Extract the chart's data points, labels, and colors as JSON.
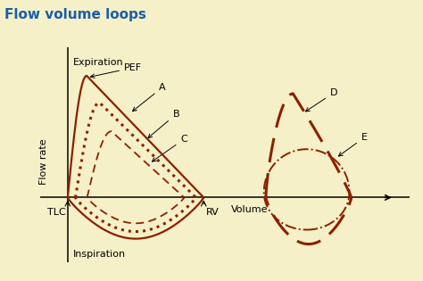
{
  "title": "Flow volume loops",
  "title_color": "#1a5fa8",
  "bg_color": "#f5f0c8",
  "curve_color": "#8B2000",
  "xlabel": "Volume",
  "ylabel": "Flow rate",
  "label_expiration": "Expiration",
  "label_inspiration": "Inspiration",
  "label_PEF": "PEF",
  "label_A": "A",
  "label_B": "B",
  "label_C": "C",
  "label_D": "D",
  "label_E": "E",
  "label_TLC": "TLC",
  "label_RV": "RV",
  "fs_title": 11,
  "fs_label": 8,
  "fs_annot": 8
}
